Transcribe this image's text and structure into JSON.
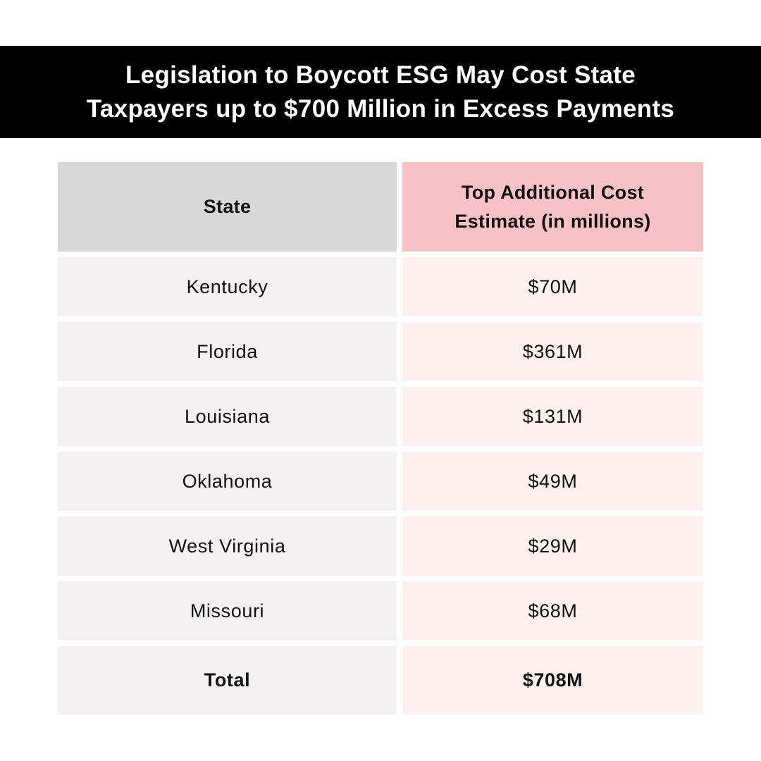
{
  "title": {
    "line1": "Legislation to Boycott ESG May Cost State",
    "line2": "Taxpayers up to $700 Million in Excess Payments"
  },
  "table": {
    "headers": {
      "state": "State",
      "cost_line1": "Top Additional Cost",
      "cost_line2": "Estimate (in millions)"
    },
    "rows": [
      {
        "state": "Kentucky",
        "cost": "$70M"
      },
      {
        "state": "Florida",
        "cost": "$361M"
      },
      {
        "state": "Louisiana",
        "cost": "$131M"
      },
      {
        "state": "Oklahoma",
        "cost": "$49M"
      },
      {
        "state": "West Virginia",
        "cost": "$29M"
      },
      {
        "state": "Missouri",
        "cost": "$68M"
      }
    ],
    "total": {
      "label": "Total",
      "cost": "$708M"
    }
  },
  "colors": {
    "banner": "#000000",
    "header_state": "#d8d8d8",
    "header_cost": "#f8c2c4",
    "body_state": "#f2f0f1",
    "body_cost": "#fdf0ef"
  }
}
